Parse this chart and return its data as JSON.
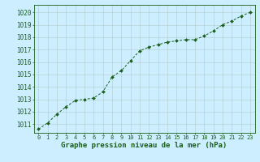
{
  "x": [
    0,
    1,
    2,
    3,
    4,
    5,
    6,
    7,
    8,
    9,
    10,
    11,
    12,
    13,
    14,
    15,
    16,
    17,
    18,
    19,
    20,
    21,
    22,
    23
  ],
  "y": [
    1010.6,
    1011.1,
    1011.8,
    1012.4,
    1012.9,
    1013.0,
    1013.1,
    1013.6,
    1014.8,
    1015.3,
    1016.1,
    1016.9,
    1017.2,
    1017.4,
    1017.6,
    1017.7,
    1017.8,
    1017.8,
    1018.1,
    1018.5,
    1019.0,
    1019.3,
    1019.7,
    1020.0
  ],
  "line_color": "#1a5e1a",
  "marker": "D",
  "marker_size": 2.0,
  "bg_color": "#cceeff",
  "grid_color": "#b0c8c8",
  "axis_color": "#1a5e1a",
  "xlabel": "Graphe pression niveau de la mer (hPa)",
  "xlabel_fontsize": 6.5,
  "xtick_labels": [
    "0",
    "1",
    "2",
    "3",
    "4",
    "5",
    "6",
    "7",
    "8",
    "9",
    "10",
    "11",
    "12",
    "13",
    "14",
    "15",
    "16",
    "17",
    "18",
    "19",
    "20",
    "21",
    "22",
    "23"
  ],
  "ytick_min": 1011,
  "ytick_max": 1020,
  "ytick_step": 1,
  "ylim": [
    1010.3,
    1020.6
  ],
  "xlim": [
    -0.5,
    23.5
  ]
}
